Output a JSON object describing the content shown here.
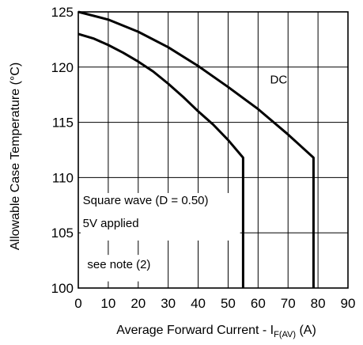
{
  "chart_data": {
    "type": "line",
    "title": "",
    "xlabel": "Average Forward Current - I",
    "xlabel_subscript": "F(AV)",
    "xlabel_unit": " (A)",
    "ylabel": "Allowable Case Temperature (°C)",
    "xlim": [
      0,
      90
    ],
    "ylim": [
      100,
      125
    ],
    "xticks": [
      0,
      10,
      20,
      30,
      40,
      50,
      60,
      70,
      80,
      90
    ],
    "yticks": [
      100,
      105,
      110,
      115,
      120,
      125
    ],
    "grid": true,
    "series": [
      {
        "name": "DC",
        "x": [
          0,
          10,
          20,
          30,
          40,
          50,
          60,
          70,
          78.5,
          78.5
        ],
        "y": [
          125,
          124.3,
          123.2,
          121.8,
          120.1,
          118.2,
          116.2,
          113.9,
          111.8,
          100
        ]
      },
      {
        "name": "",
        "x": [
          0,
          5,
          10,
          15,
          20,
          25,
          30,
          35,
          40,
          45,
          50,
          55,
          55
        ],
        "y": [
          123,
          122.6,
          122,
          121.3,
          120.5,
          119.6,
          118.5,
          117.3,
          116,
          114.8,
          113.4,
          111.8,
          100
        ]
      }
    ],
    "annotations": [
      {
        "text": "DC",
        "x": 64,
        "y": 118.5
      },
      {
        "text": "Square wave (D = 0.50)",
        "x": 1.5,
        "y": 107.6
      },
      {
        "text": "5V  applied",
        "x": 1.5,
        "y": 105.5
      },
      {
        "text": "see note (2)",
        "x": 3,
        "y": 101.8
      }
    ]
  }
}
